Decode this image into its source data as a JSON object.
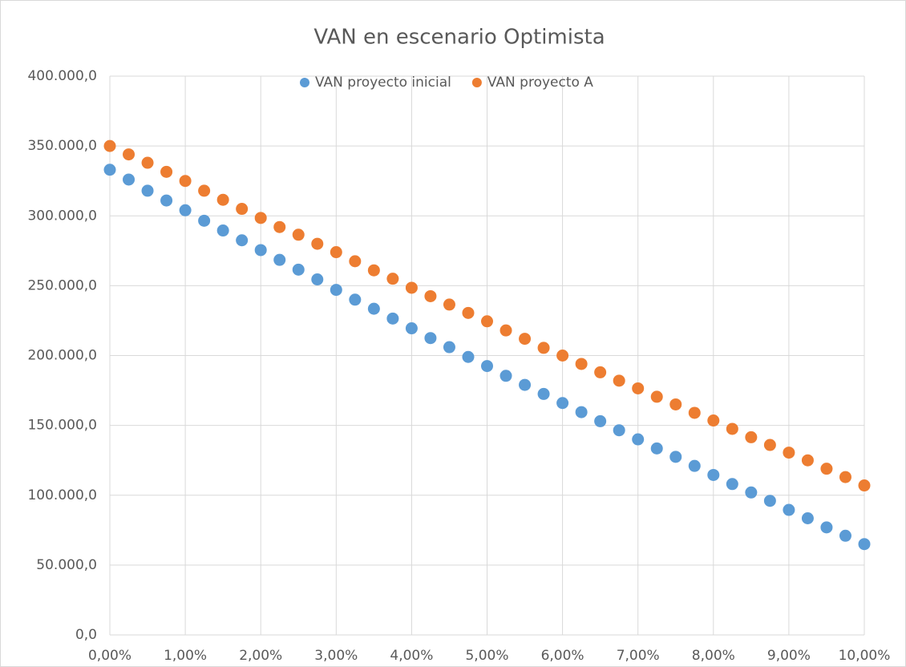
{
  "chart_data": {
    "type": "scatter",
    "title": "VAN en escenario Optimista",
    "x": [
      0,
      0.25,
      0.5,
      0.75,
      1,
      1.25,
      1.5,
      1.75,
      2,
      2.25,
      2.5,
      2.75,
      3,
      3.25,
      3.5,
      3.75,
      4,
      4.25,
      4.5,
      4.75,
      5,
      5.25,
      5.5,
      5.75,
      6,
      6.25,
      6.5,
      6.75,
      7,
      7.25,
      7.5,
      7.75,
      8,
      8.25,
      8.5,
      8.75,
      9,
      9.25,
      9.5,
      9.75,
      10
    ],
    "series": [
      {
        "name": "VAN proyecto inicial",
        "color": "#5b9bd5",
        "values": [
          333000,
          326000,
          318000,
          311000,
          304000,
          296500,
          289500,
          282500,
          275500,
          268500,
          261500,
          254500,
          247000,
          240000,
          233500,
          226500,
          219500,
          212500,
          206000,
          199000,
          192500,
          185500,
          179000,
          172500,
          166000,
          159500,
          153000,
          146500,
          140000,
          133500,
          127500,
          121000,
          114500,
          108000,
          102000,
          96000,
          89500,
          83500,
          77000,
          71000,
          65000
        ]
      },
      {
        "name": "VAN proyecto A",
        "color": "#ed7d31",
        "values": [
          350000,
          344000,
          338000,
          331500,
          325000,
          318000,
          311500,
          305000,
          298500,
          292000,
          286500,
          280000,
          274000,
          267500,
          261000,
          255000,
          248500,
          242500,
          236500,
          230500,
          224500,
          218000,
          212000,
          205500,
          200000,
          194000,
          188000,
          182000,
          176500,
          170500,
          165000,
          159000,
          153500,
          147500,
          141500,
          136000,
          130500,
          125000,
          119000,
          113000,
          107000
        ]
      }
    ],
    "xlim": [
      0,
      10
    ],
    "xticks": [
      {
        "value": 0,
        "label": "0,00%"
      },
      {
        "value": 1,
        "label": "1,00%"
      },
      {
        "value": 2,
        "label": "2,00%"
      },
      {
        "value": 3,
        "label": "3,00%"
      },
      {
        "value": 4,
        "label": "4,00%"
      },
      {
        "value": 5,
        "label": "5,00%"
      },
      {
        "value": 6,
        "label": "6,00%"
      },
      {
        "value": 7,
        "label": "7,00%"
      },
      {
        "value": 8,
        "label": "8,00%"
      },
      {
        "value": 9,
        "label": "9,00%"
      },
      {
        "value": 10,
        "label": "10,00%"
      }
    ],
    "ylim": [
      0,
      400000
    ],
    "yticks": [
      {
        "value": 0,
        "label": "0,0"
      },
      {
        "value": 50000,
        "label": "50.000,0"
      },
      {
        "value": 100000,
        "label": "100.000,0"
      },
      {
        "value": 150000,
        "label": "150.000,0"
      },
      {
        "value": 200000,
        "label": "200.000,0"
      },
      {
        "value": 250000,
        "label": "250.000,0"
      },
      {
        "value": 300000,
        "label": "300.000,0"
      },
      {
        "value": 350000,
        "label": "350.000,0"
      },
      {
        "value": 400000,
        "label": "400.000,0"
      }
    ],
    "grid": true,
    "legend": "top"
  }
}
